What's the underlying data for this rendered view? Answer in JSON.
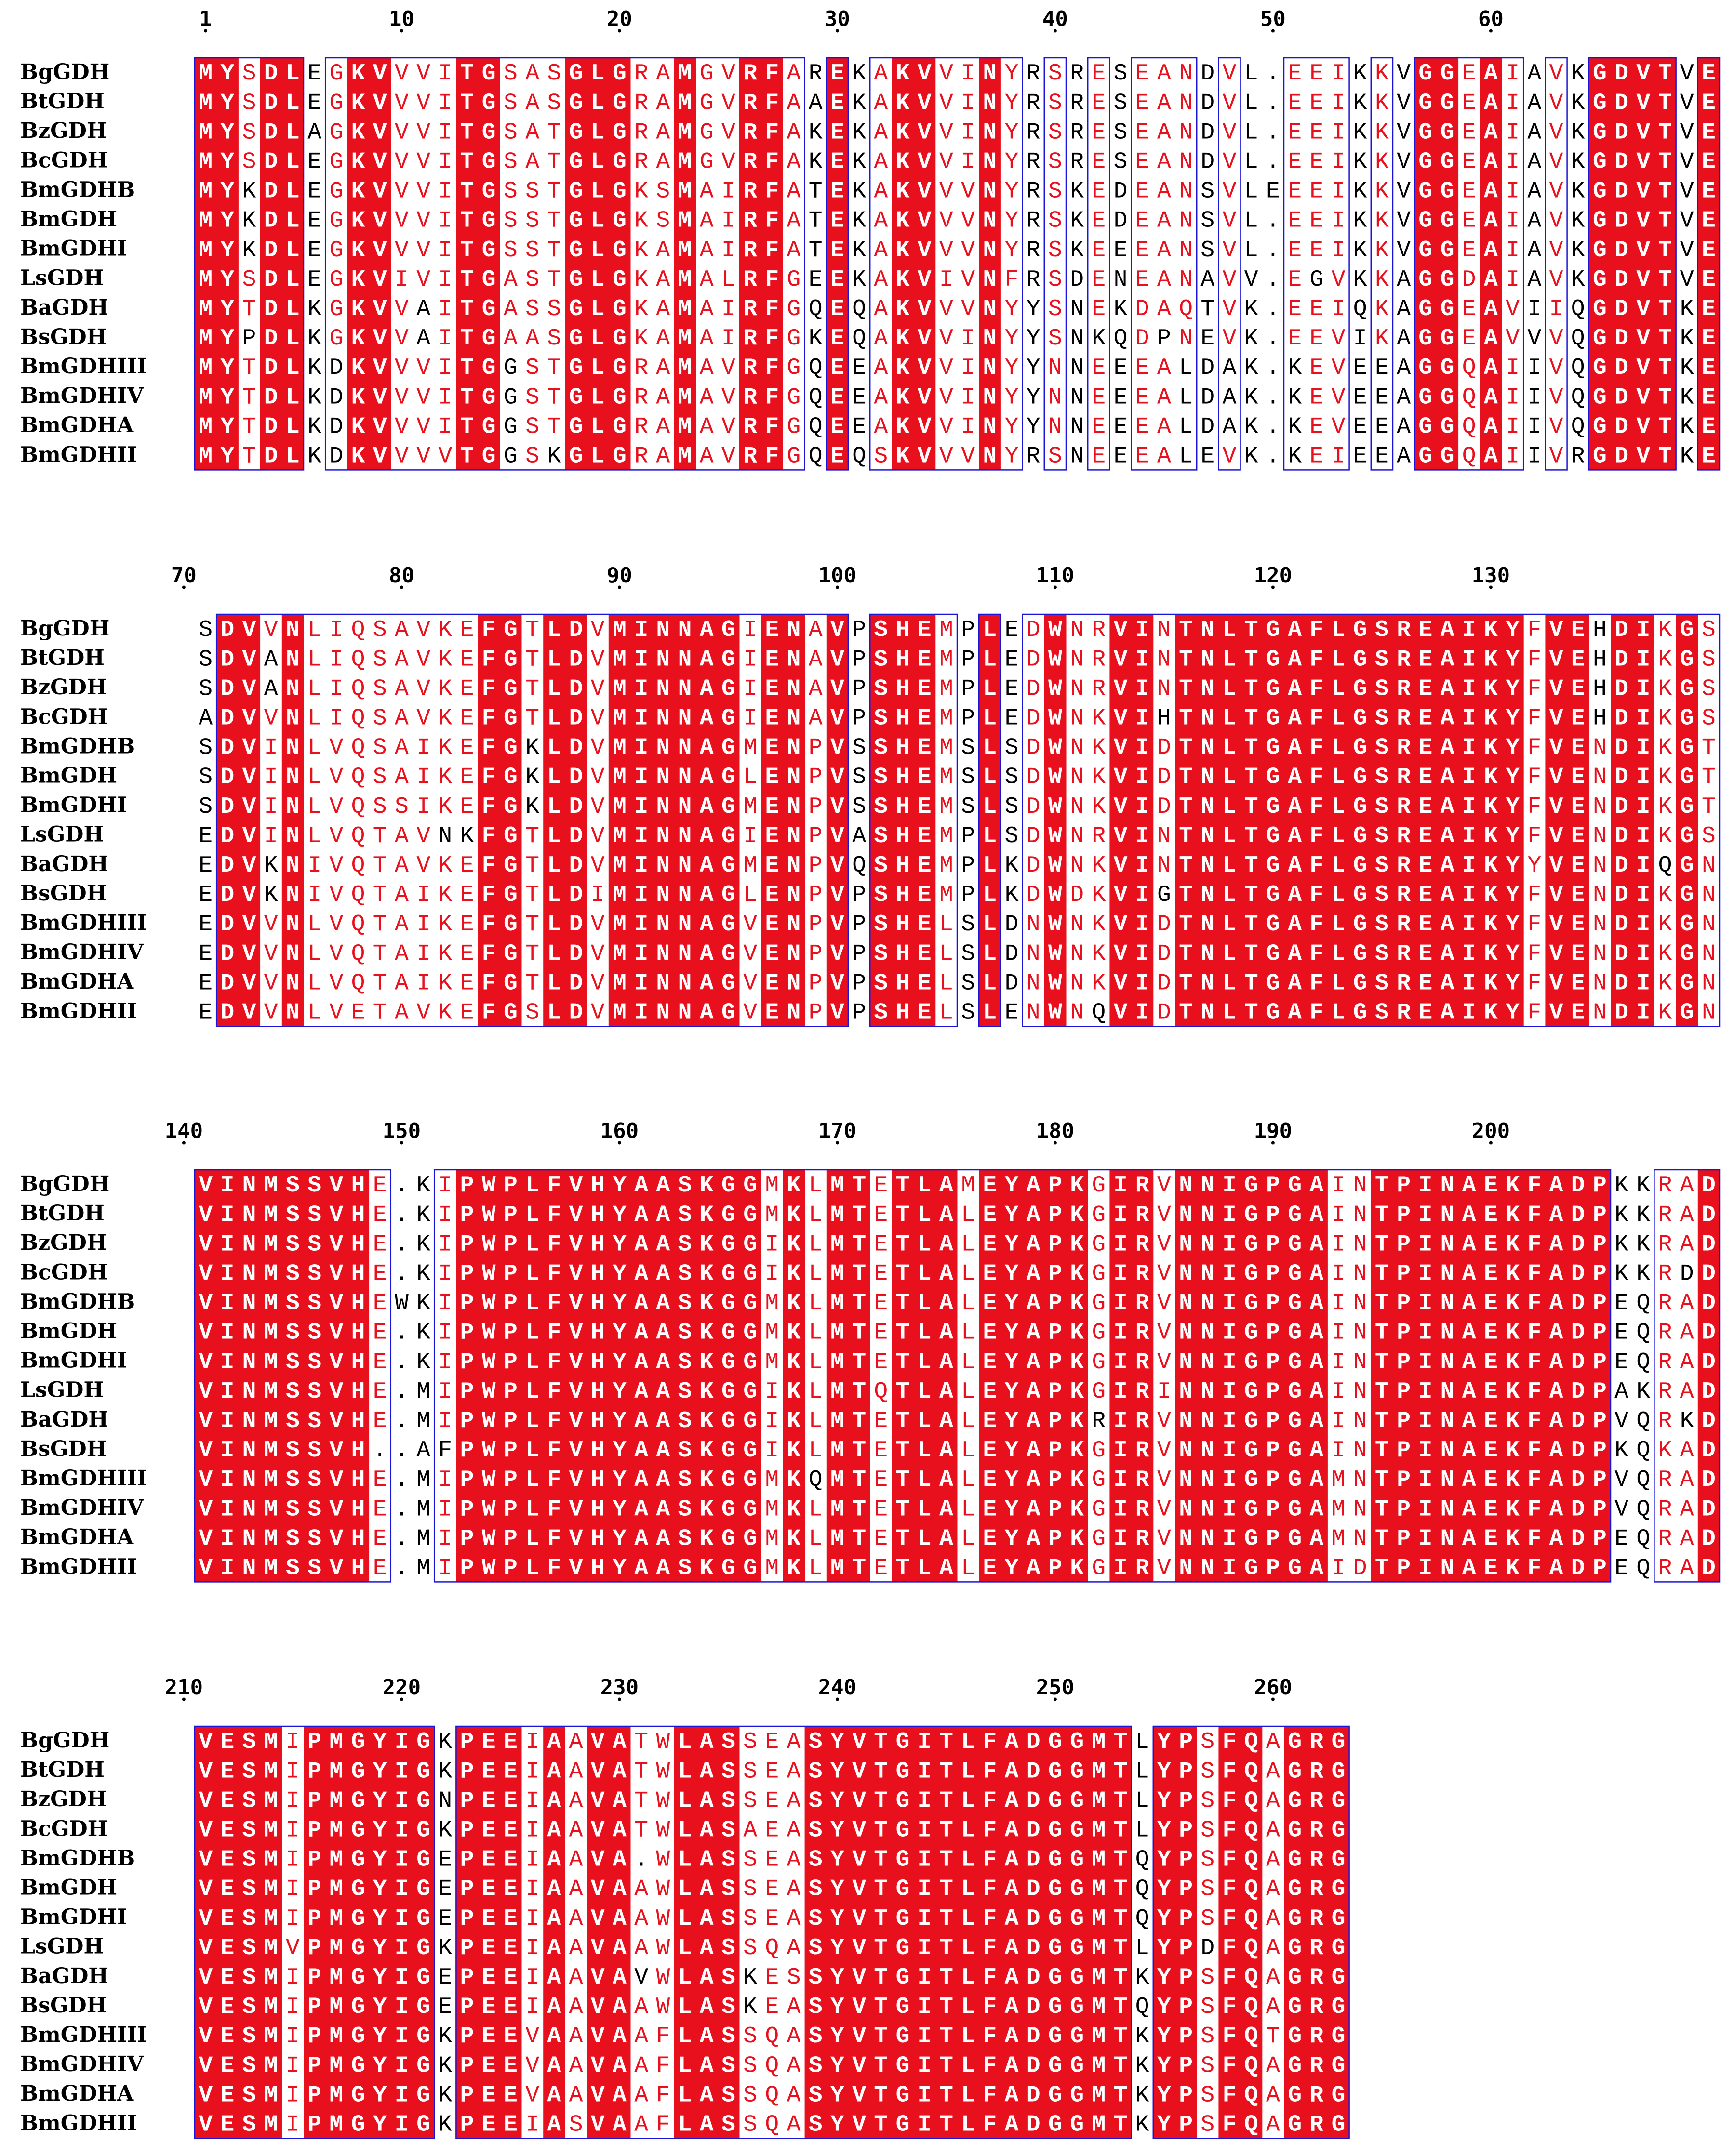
{
  "figure": {
    "type": "multiple-sequence-alignment",
    "colors": {
      "identical_bg": "#e8101c",
      "identical_text": "#ffffff",
      "similar_text": "#e8101c",
      "box": "#1a14d6",
      "other_text": "#000000"
    }
  },
  "sequences": [
    "BgGDH",
    "BtGDH",
    "BzGDH",
    "BcGDH",
    "BmGDHB",
    "BmGDH",
    "BmGDHI",
    "LsGDH",
    "BaGDH",
    "BsGDH",
    "BmGDHIII",
    "BmGDHIV",
    "BmGDHA",
    "BmGDHII"
  ],
  "blocks": [
    {
      "start": 1,
      "ruler": [
        "1",
        "10",
        "20",
        "30",
        "40",
        "50",
        "60"
      ],
      "rows": [
        "MYSDLEGKVVVITGSASGLGRAMGVRFAREKAKVVINYRSRESEANDVL.EEIKKVGGEAIAVKGDVTVE",
        "MYSDLEGKVVVITGSASGLGRAMGVRFAAEKAKVVINYRSRESEANDVL.EEIKKVGGEAIAVKGDVTVE",
        "MYSDLAGKVVVITGSATGLGRAMGVRFAKEKAKVVINYRSRESEANDVL.EEIKKVGGEAIAVKGDVTVE",
        "MYSDLEGKVVVITGSATGLGRAMGVRFAKEKAKVVINYRSRESEANDVL.EEIKKVGGEAIAVKGDVTVE",
        "MYKDLEGKVVVITGSSTGLGKSMAIRFATEKAKVVVNYRSKEDEANSVLEEEIKKVGGEAIAVKGDVTVE",
        "MYKDLEGKVVVITGSSTGLGKSMAIRFATEKAKVVVNYRSKEDEANSVL.EEIKKVGGEAIAVKGDVTVE",
        "MYKDLEGKVVVITGSSTGLGKAMAIRFATEKAKVVVNYRSKEEEANSVL.EEIKKVGGEAIAVKGDVTVE",
        "MYSDLEGKVIVITGASTGLGKAMALRFGEEKAKVIVNFRSDENEANAVV.EGVKKAGGDAIAVKGDVTVE",
        "MYTDLKGKVVAITGASSGLGKAMAIRFGQEQAKVVVNYYSNEKDAQTVK.EEIQKAGGEAVIIQGDVTKE",
        "MYPDLKGKVVAITGAASGLGKAMAIRFGKEQAKVVINYYSNKQDPNEVK.EEVIKAGGEAVVVQGDVTKE",
        "MYTDLKDKVVVITGGSTGLGRAMAVRFGQEEAKVVINYYNNEEEALDAK.KEVEEAGGQAIIVQGDVTKE",
        "MYTDLKDKVVVITGGSTGLGRAMAVRFGQEEAKVVINYYNNEEEALDAK.KEVEEAGGQAIIVQGDVTKE",
        "MYTDLKDKVVVITGGSTGLGRAMAVRFGQEEAKVVINYYNNEEEALDAK.KEVEEAGGQAIIVQGDVTKE",
        "MYTDLKDKVVVVTGGSKGLGRAMAVRFGQEQSKVVVNYRSNEEEALEVK.KEIEEAGGQAIIVRGDVTKE"
      ]
    },
    {
      "start": 71,
      "ruler": [
        "70",
        "80",
        "90",
        "100",
        "110",
        "120",
        "130"
      ],
      "rows": [
        "SDVVNLIQSAVKEFGTLDVMINNAGIENAVPSHEMPLEDWNRVINTNLTGAFLGSREAIKYFVEHDIKGS",
        "SDVANLIQSAVKEFGTLDVMINNAGIENAVPSHEMPLEDWNRVINTNLTGAFLGSREAIKYFVEHDIKGS",
        "SDVANLIQSAVKEFGTLDVMINNAGIENAVPSHEMPLEDWNRVINTNLTGAFLGSREAIKYFVEHDIKGS",
        "ADVVNLIQSAVKEFGTLDVMINNAGIENAVPSHEMPLEDWNKVIHTNLTGAFLGSREAIKYFVEHDIKGS",
        "SDVINLVQSAIKEFGKLDVMINNAGMENPVSSHEMSLSDWNKVIDTNLTGAFLGSREAIKYFVENDIKGT",
        "SDVINLVQSAIKEFGKLDVMINNAGLENPVSSHEMSLSDWNKVIDTNLTGAFLGSREAIKYFVENDIKGT",
        "SDVINLVQSSIKEFGKLDVMINNAGMENPVSSHEMSLSDWNKVIDTNLTGAFLGSREAIKYFVENDIKGT",
        "EDVINLVQTAVNKFGTLDVMINNAGIENPVASHEMPLSDWNRVINTNLTGAFLGSREAIKYFVENDIKGS",
        "EDVKNIVQTAVKEFGTLDVMINNAGMENPVQSHEMPLKDWNKVINTNLTGAFLGSREAIKYYVENDIQGN",
        "EDVKNIVQTAIKEFGTLDIMINNAGLENPVPSHEMPLKDWDKVIGTNLTGAFLGSREAIKYFVENDIKGN",
        "EDVVNLVQTAIKEFGTLDVMINNAGVENPVPSHELSLDNWNKVIDTNLTGAFLGSREAIKYFVENDIKGN",
        "EDVVNLVQTAIKEFGTLDVMINNAGVENPVPSHELSLDNWNKVIDTNLTGAFLGSREAIKYFVENDIKGN",
        "EDVVNLVQTAIKEFGTLDVMINNAGVENPVPSHELSLDNWNKVIDTNLTGAFLGSREAIKYFVENDIKGN",
        "EDVVNLVETAVKEFGSLDVMINNAGVENPVPSHELSLENWNQVIDTNLTGAFLGSREAIKYFVENDIKGN"
      ]
    },
    {
      "start": 141,
      "ruler": [
        "140",
        "150",
        "160",
        "170",
        "180",
        "190",
        "200"
      ],
      "rows": [
        "VINMSSVHE.KIPWPLFVHYAASKGGMKLMTETLAMEYAPKGIRVNNIGPGAINTPINAEKFADPKKRAD",
        "VINMSSVHE.KIPWPLFVHYAASKGGMKLMTETLALEYAPKGIRVNNIGPGAINTPINAEKFADPKKRAD",
        "VINMSSVHE.KIPWPLFVHYAASKGGIKLMTETLALEYAPKGIRVNNIGPGAINTPINAEKFADPKKRAD",
        "VINMSSVHE.KIPWPLFVHYAASKGGIKLMTETLALEYAPKGIRVNNIGPGAINTPINAEKFADPKKRDD",
        "VINMSSVHEWKIPWPLFVHYAASKGGMKLMTETLALEYAPKGIRVNNIGPGAINTPINAEKFADPEQRAD",
        "VINMSSVHE.KIPWPLFVHYAASKGGMKLMTETLALEYAPKGIRVNNIGPGAINTPINAEKFADPEQRAD",
        "VINMSSVHE.KIPWPLFVHYAASKGGMKLMTETLALEYAPKGIRVNNIGPGAINTPINAEKFADPEQRAD",
        "VINMSSVHE.MIPWPLFVHYAASKGGIKLMTQTLALEYAPKGIRINNIGPGAINTPINAEKFADPAKRAD",
        "VINMSSVHE.MIPWPLFVHYAASKGGIKLMTETLALEYAPKRIRVNNIGPGAINTPINAEKFADPVQRKD",
        "VINMSSVH..AFPWPLFVHYAASKGGIKLMTETLALEYAPKGIRVNNIGPGAINTPINAEKFADPKQKAD",
        "VINMSSVHE.MIPWPLFVHYAASKGGMKQMTETLALEYAPKGIRVNNIGPGAMNTPINAEKFADPVQRAD",
        "VINMSSVHE.MIPWPLFVHYAASKGGMKLMTETLALEYAPKGIRVNNIGPGAMNTPINAEKFADPVQRAD",
        "VINMSSVHE.MIPWPLFVHYAASKGGMKLMTETLALEYAPKGIRVNNIGPGAMNTPINAEKFADPEQRAD",
        "VINMSSVHE.MIPWPLFVHYAASKGGMKLMTETLALEYAPKGIRVNNIGPGAIDTPINAEKFADPEQRAD"
      ]
    },
    {
      "start": 211,
      "ruler": [
        "210",
        "220",
        "230",
        "240",
        "250",
        "260"
      ],
      "rows": [
        "VESMIPMGYIGKPEEIAAVATWLASSEASYVTGITLFADGGMTLYPSFQAGRG",
        "VESMIPMGYIGKPEEIAAVATWLASSEASYVTGITLFADGGMTLYPSFQAGRG",
        "VESMIPMGYIGNPEEIAAVATWLASSEASYVTGITLFADGGMTLYPSFQAGRG",
        "VESMIPMGYIGKPEEIAAVATWLASAEASYVTGITLFADGGMTLYPSFQAGRG",
        "VESMIPMGYIGEPEEIAAVA.WLASSEASYVTGITLFADGGMTQYPSFQAGRG",
        "VESMIPMGYIGEPEEIAAVAAWLASSEASYVTGITLFADGGMTQYPSFQAGRG",
        "VESMIPMGYIGEPEEIAAVAAWLASSEASYVTGITLFADGGMTQYPSFQAGRG",
        "VESMVPMGYIGKPEEIAAVAAWLASSQASYVTGITLFADGGMTLYPDFQAGRG",
        "VESMIPMGYIGEPEEIAAVAVWLASKESSYVTGITLFADGGMTKYPSFQAGRG",
        "VESMIPMGYIGEPEEIAAVAAWLASKEASYVTGITLFADGGMTQYPSFQAGRG",
        "VESMIPMGYIGKPEEVAAVAAFLASSQASYVTGITLFADGGMTKYPSFQTGRG",
        "VESMIPMGYIGKPEEVAAVAAFLASSQASYVTGITLFADGGMTKYPSFQAGRG",
        "VESMIPMGYIGKPEEVAAVAAFLASSQASYVTGITLFADGGMTKYPSFQAGRG",
        "VESMIPMGYIGKPEEIASVAAFLASSQASYVTGITLFADGGMTKYPSFQAGRG"
      ]
    }
  ]
}
